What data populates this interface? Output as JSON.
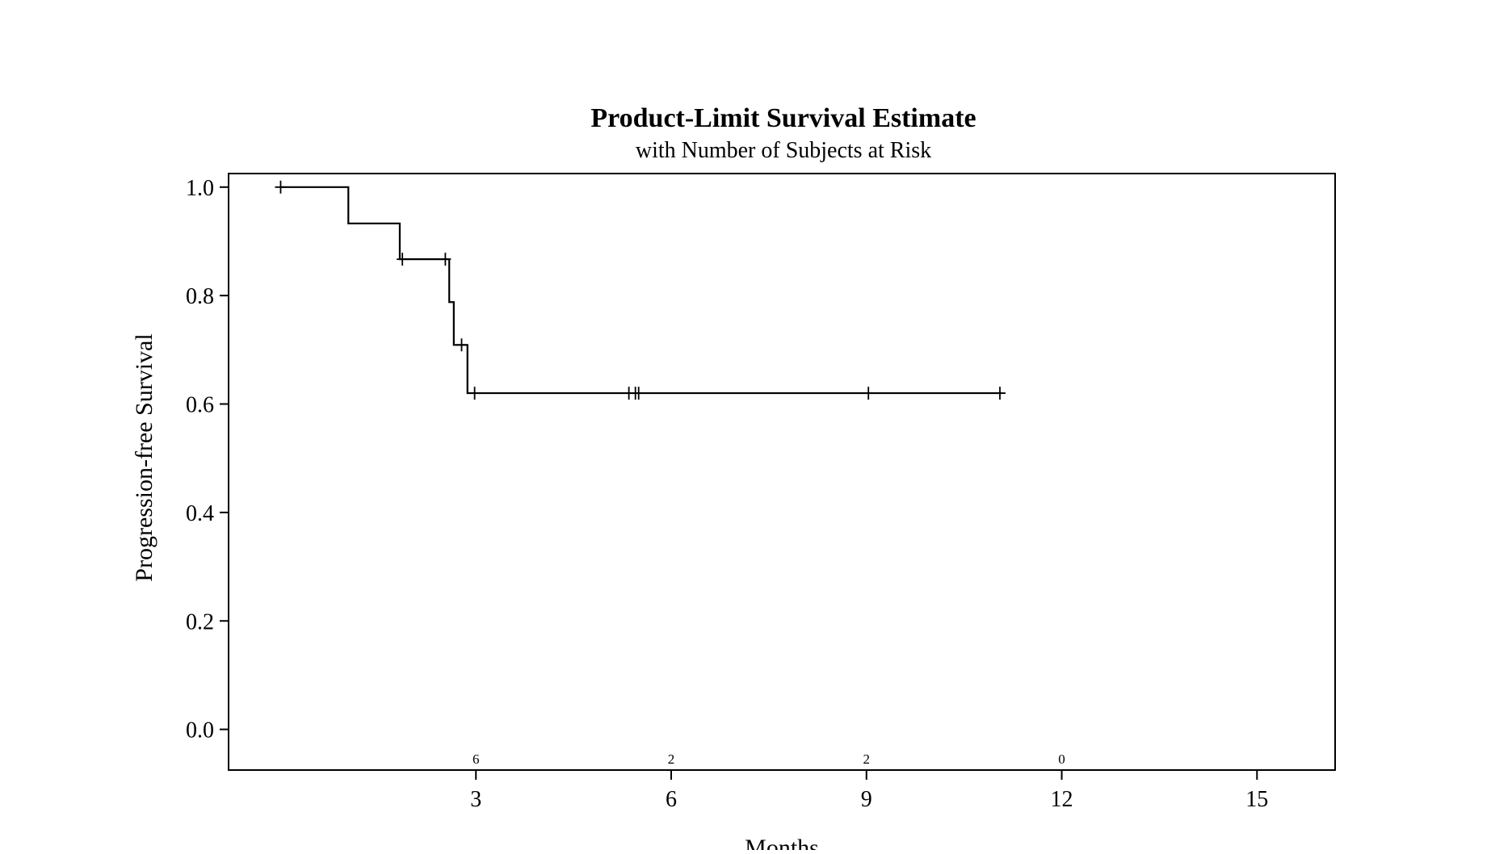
{
  "chart_data": {
    "type": "line",
    "title": "Product-Limit Survival Estimate",
    "subtitle": "with Number of Subjects at Risk",
    "xlabel": "Months",
    "ylabel": "Progression-free Survival",
    "xlim": [
      -0.8,
      16.2
    ],
    "ylim": [
      -0.075,
      1.025
    ],
    "x_ticks": [
      3,
      6,
      9,
      12,
      15
    ],
    "y_ticks": [
      0.0,
      0.2,
      0.4,
      0.6,
      0.8,
      1.0
    ],
    "x_tick_labels": [
      "3",
      "6",
      "9",
      "12",
      "15"
    ],
    "y_tick_labels": [
      "0.0",
      "0.2",
      "0.4",
      "0.6",
      "0.8",
      "1.0"
    ],
    "grid": false,
    "line_color": "#000000",
    "series": [
      {
        "steps": [
          {
            "x": 0.0,
            "y": 1.0
          },
          {
            "x": 1.04,
            "y": 0.933
          },
          {
            "x": 1.83,
            "y": 0.867
          },
          {
            "x": 2.59,
            "y": 0.788
          },
          {
            "x": 2.66,
            "y": 0.709
          },
          {
            "x": 2.87,
            "y": 0.62
          }
        ],
        "end_x": 11.08,
        "censored": [
          {
            "x": 0.0,
            "y": 1.0
          },
          {
            "x": 1.87,
            "y": 0.867
          },
          {
            "x": 2.53,
            "y": 0.867
          },
          {
            "x": 2.78,
            "y": 0.709
          },
          {
            "x": 2.98,
            "y": 0.62
          },
          {
            "x": 5.35,
            "y": 0.62
          },
          {
            "x": 5.45,
            "y": 0.62
          },
          {
            "x": 5.5,
            "y": 0.62
          },
          {
            "x": 9.03,
            "y": 0.62
          },
          {
            "x": 11.05,
            "y": 0.62
          }
        ]
      }
    ],
    "at_risk": [
      {
        "x": 3,
        "label": "6"
      },
      {
        "x": 6,
        "label": "2"
      },
      {
        "x": 9,
        "label": "2"
      },
      {
        "x": 12,
        "label": "0"
      }
    ]
  }
}
